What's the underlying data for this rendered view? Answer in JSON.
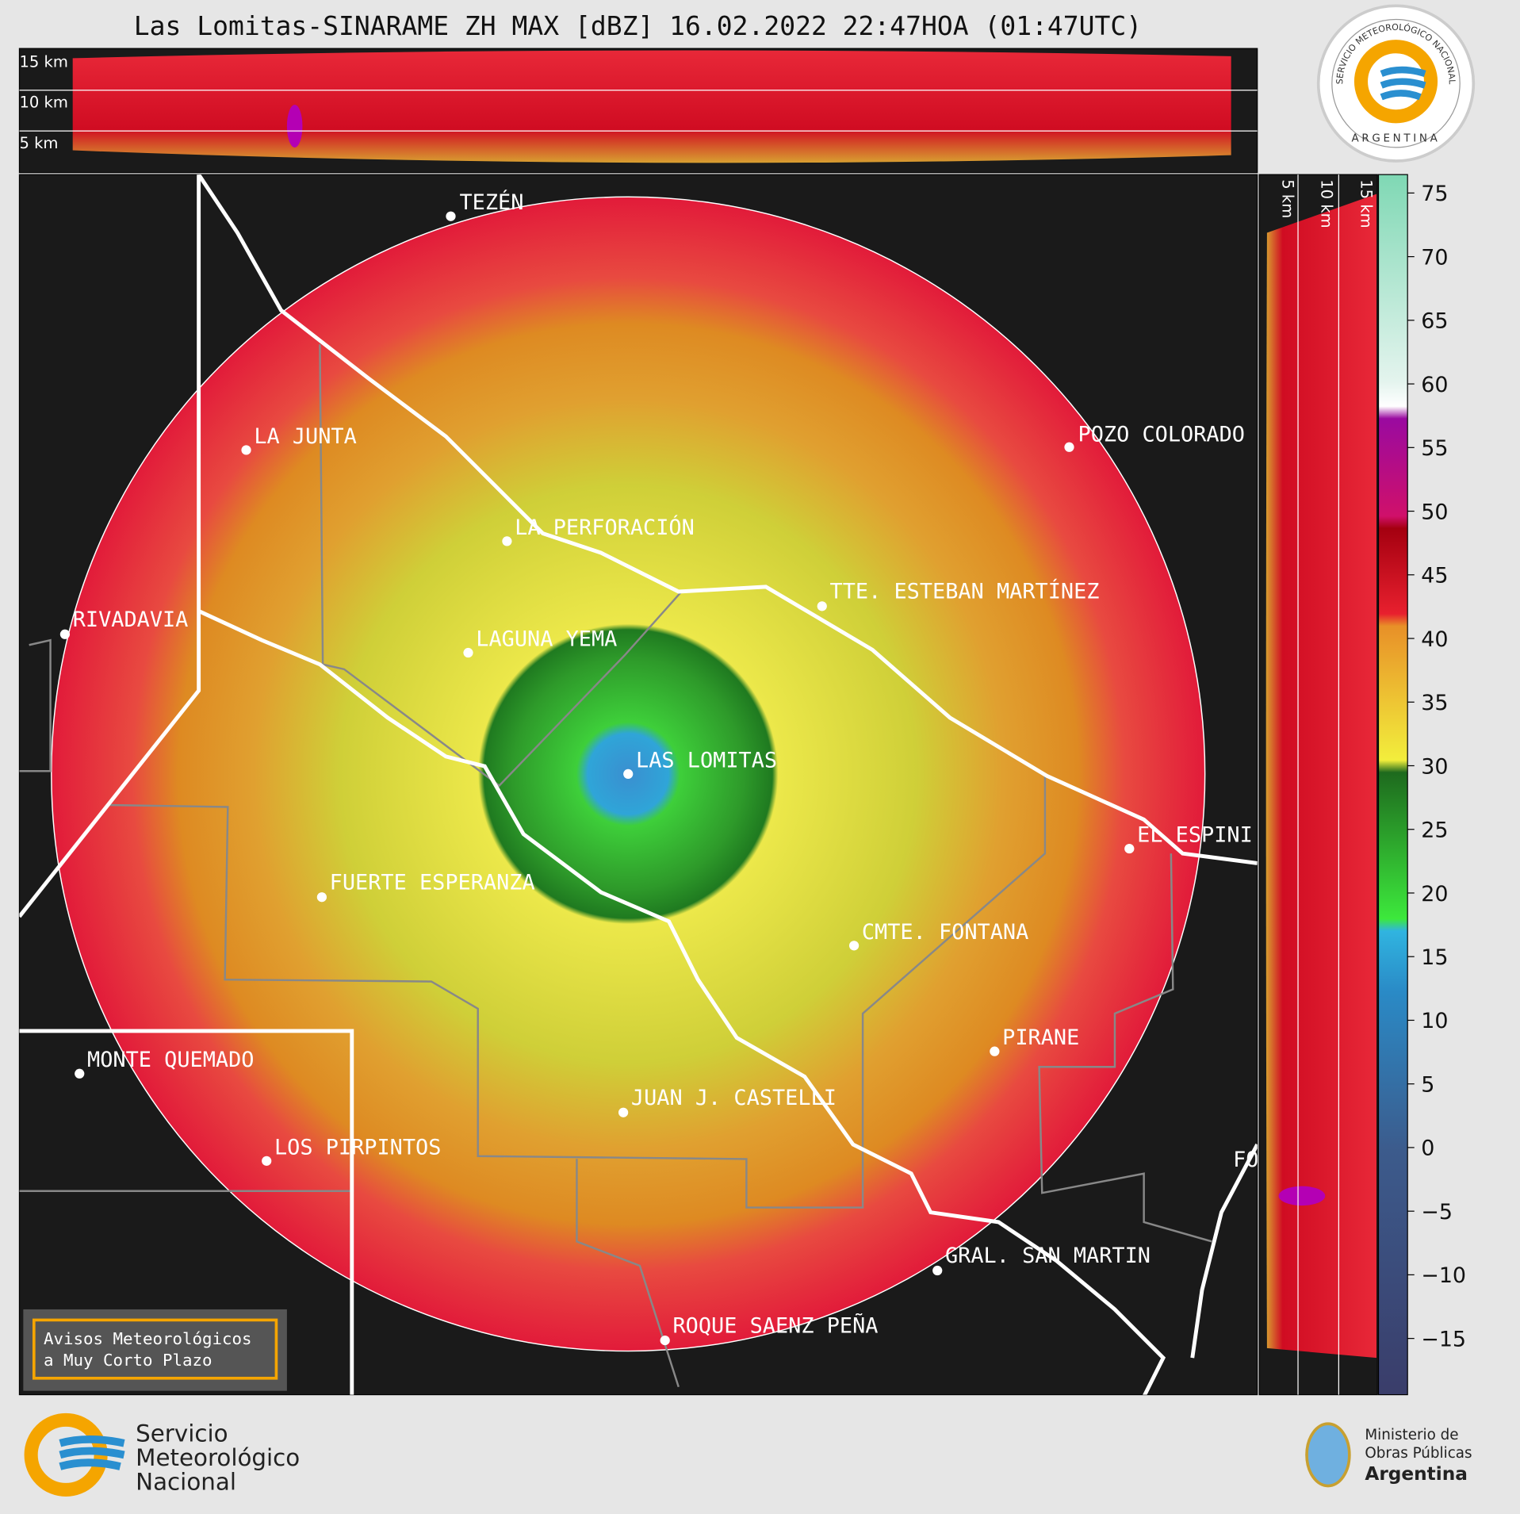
{
  "header": {
    "title": "Las Lomitas-SINARAME ZH MAX [dBZ] 16.02.2022 22:47HOA (01:47UTC)",
    "seal_ring": "SERVICIO METEOROLÓGICO NACIONAL",
    "seal_country": "ARGENTINA"
  },
  "top_panel": {
    "heights": [
      "15 km",
      "10 km",
      "5 km"
    ]
  },
  "side_panel": {
    "heights": [
      "5 km",
      "10 km",
      "15 km"
    ]
  },
  "colorbar": {
    "ticks": [
      75,
      70,
      65,
      60,
      55,
      50,
      45,
      40,
      35,
      30,
      25,
      20,
      15,
      10,
      5,
      0,
      {
        "value": -5,
        "label": "−5"
      },
      {
        "value": -10,
        "label": "−10"
      },
      {
        "value": -15,
        "label": "−15"
      }
    ]
  },
  "cities": [
    "TEZÉN",
    "LA JUNTA",
    "POZO COLORADO",
    "LA PERFORACIÓN",
    "TTE. ESTEBAN MARTÍNEZ",
    "RIVADAVIA",
    "LAGUNA YEMA",
    "LAS LOMITAS",
    "EL ESPINI",
    "FUERTE ESPERANZA",
    "CMTE. FONTANA",
    "PIRANE",
    "MONTE QUEMADO",
    "JUAN J. CASTELLI",
    "LOS PIRPINTOS",
    "GRAL. SAN MARTIN",
    "ROQUE SAENZ PEÑA",
    "FO"
  ],
  "notice": {
    "line1": "Avisos Meteorológicos",
    "line2": "a Muy Corto Plazo"
  },
  "footer": {
    "smn": [
      "Servicio",
      "Meteorológico",
      "Nacional"
    ],
    "ministry": [
      "Ministerio de",
      "Obras Públicas",
      "Argentina"
    ]
  }
}
